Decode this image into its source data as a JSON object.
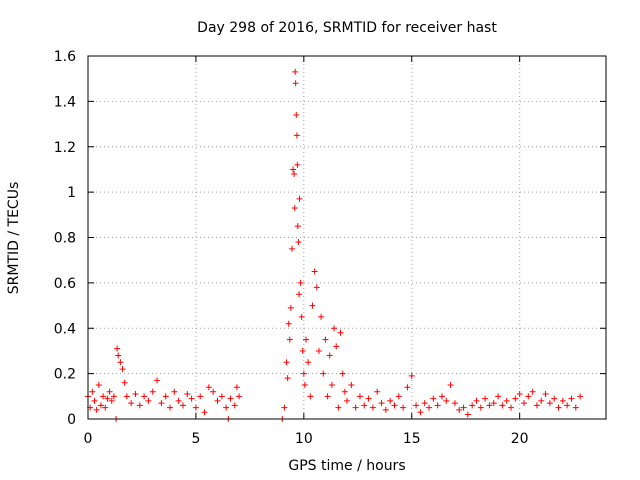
{
  "chart_data": {
    "type": "scatter",
    "title": "Day 298 of 2016, SRMTID for receiver hast",
    "xlabel": "GPS time / hours",
    "ylabel": "SRMTID / TECUs",
    "xlim": [
      0,
      24
    ],
    "ylim": [
      0,
      1.6
    ],
    "x_ticks": [
      0,
      5,
      10,
      15,
      20
    ],
    "x_tick_labels": [
      "0",
      "5",
      "10",
      "15",
      "20"
    ],
    "y_ticks": [
      0,
      0.2,
      0.4,
      0.6,
      0.8,
      1,
      1.2,
      1.4,
      1.6
    ],
    "y_tick_labels": [
      "0",
      "0.2",
      "0.4",
      "0.6",
      "0.8",
      "1",
      "1.2",
      "1.4",
      "1.6"
    ],
    "grid": true,
    "marker": "+",
    "series": [
      {
        "name": "SRMTID",
        "color": "#ff0000",
        "points": [
          [
            0.0,
            0.1
          ],
          [
            0.1,
            0.05
          ],
          [
            0.2,
            0.12
          ],
          [
            0.3,
            0.08
          ],
          [
            0.4,
            0.04
          ],
          [
            0.5,
            0.15
          ],
          [
            0.6,
            0.06
          ],
          [
            0.7,
            0.1
          ],
          [
            0.8,
            0.05
          ],
          [
            0.9,
            0.09
          ],
          [
            1.0,
            0.12
          ],
          [
            1.1,
            0.08
          ],
          [
            1.2,
            0.1
          ],
          [
            1.3,
            0.0
          ],
          [
            1.35,
            0.31
          ],
          [
            1.4,
            0.28
          ],
          [
            1.5,
            0.25
          ],
          [
            1.6,
            0.22
          ],
          [
            1.7,
            0.16
          ],
          [
            1.8,
            0.1
          ],
          [
            2.0,
            0.07
          ],
          [
            2.2,
            0.11
          ],
          [
            2.4,
            0.06
          ],
          [
            2.6,
            0.1
          ],
          [
            2.8,
            0.08
          ],
          [
            3.0,
            0.12
          ],
          [
            3.2,
            0.17
          ],
          [
            3.4,
            0.07
          ],
          [
            3.6,
            0.1
          ],
          [
            3.8,
            0.05
          ],
          [
            4.0,
            0.12
          ],
          [
            4.2,
            0.08
          ],
          [
            4.4,
            0.06
          ],
          [
            4.6,
            0.11
          ],
          [
            4.8,
            0.09
          ],
          [
            5.0,
            0.05
          ],
          [
            5.2,
            0.1
          ],
          [
            5.4,
            0.03
          ],
          [
            5.6,
            0.14
          ],
          [
            5.8,
            0.12
          ],
          [
            6.0,
            0.08
          ],
          [
            6.2,
            0.1
          ],
          [
            6.4,
            0.05
          ],
          [
            6.5,
            0.0
          ],
          [
            6.6,
            0.09
          ],
          [
            6.8,
            0.06
          ],
          [
            6.9,
            0.14
          ],
          [
            7.0,
            0.1
          ],
          [
            9.0,
            0.0
          ],
          [
            9.1,
            0.05
          ],
          [
            9.2,
            0.25
          ],
          [
            9.25,
            0.18
          ],
          [
            9.3,
            0.42
          ],
          [
            9.35,
            0.35
          ],
          [
            9.4,
            0.49
          ],
          [
            9.45,
            0.75
          ],
          [
            9.5,
            1.1
          ],
          [
            9.55,
            1.08
          ],
          [
            9.58,
            0.93
          ],
          [
            9.6,
            1.53
          ],
          [
            9.62,
            1.48
          ],
          [
            9.65,
            1.34
          ],
          [
            9.68,
            1.25
          ],
          [
            9.7,
            1.12
          ],
          [
            9.72,
            0.85
          ],
          [
            9.75,
            0.78
          ],
          [
            9.78,
            0.55
          ],
          [
            9.8,
            0.97
          ],
          [
            9.85,
            0.6
          ],
          [
            9.9,
            0.45
          ],
          [
            9.95,
            0.3
          ],
          [
            10.0,
            0.2
          ],
          [
            10.05,
            0.15
          ],
          [
            10.1,
            0.35
          ],
          [
            10.2,
            0.25
          ],
          [
            10.3,
            0.1
          ],
          [
            10.4,
            0.5
          ],
          [
            10.5,
            0.65
          ],
          [
            10.6,
            0.58
          ],
          [
            10.7,
            0.3
          ],
          [
            10.8,
            0.45
          ],
          [
            10.9,
            0.2
          ],
          [
            11.0,
            0.35
          ],
          [
            11.1,
            0.1
          ],
          [
            11.2,
            0.28
          ],
          [
            11.3,
            0.15
          ],
          [
            11.4,
            0.4
          ],
          [
            11.5,
            0.32
          ],
          [
            11.6,
            0.05
          ],
          [
            11.7,
            0.38
          ],
          [
            11.8,
            0.2
          ],
          [
            11.9,
            0.12
          ],
          [
            12.0,
            0.08
          ],
          [
            12.2,
            0.15
          ],
          [
            12.4,
            0.05
          ],
          [
            12.6,
            0.1
          ],
          [
            12.8,
            0.06
          ],
          [
            13.0,
            0.09
          ],
          [
            13.2,
            0.05
          ],
          [
            13.4,
            0.12
          ],
          [
            13.6,
            0.07
          ],
          [
            13.8,
            0.04
          ],
          [
            14.0,
            0.08
          ],
          [
            14.2,
            0.06
          ],
          [
            14.4,
            0.1
          ],
          [
            14.6,
            0.05
          ],
          [
            14.8,
            0.14
          ],
          [
            15.0,
            0.19
          ],
          [
            15.2,
            0.06
          ],
          [
            15.4,
            0.03
          ],
          [
            15.6,
            0.07
          ],
          [
            15.8,
            0.05
          ],
          [
            16.0,
            0.09
          ],
          [
            16.2,
            0.06
          ],
          [
            16.4,
            0.1
          ],
          [
            16.6,
            0.08
          ],
          [
            16.8,
            0.15
          ],
          [
            17.0,
            0.07
          ],
          [
            17.2,
            0.04
          ],
          [
            17.4,
            0.05
          ],
          [
            17.6,
            0.02
          ],
          [
            17.8,
            0.06
          ],
          [
            18.0,
            0.08
          ],
          [
            18.2,
            0.05
          ],
          [
            18.4,
            0.09
          ],
          [
            18.6,
            0.06
          ],
          [
            18.8,
            0.07
          ],
          [
            19.0,
            0.1
          ],
          [
            19.2,
            0.06
          ],
          [
            19.4,
            0.08
          ],
          [
            19.6,
            0.05
          ],
          [
            19.8,
            0.09
          ],
          [
            20.0,
            0.11
          ],
          [
            20.2,
            0.07
          ],
          [
            20.4,
            0.1
          ],
          [
            20.6,
            0.12
          ],
          [
            20.8,
            0.06
          ],
          [
            21.0,
            0.08
          ],
          [
            21.2,
            0.11
          ],
          [
            21.4,
            0.07
          ],
          [
            21.6,
            0.09
          ],
          [
            21.8,
            0.05
          ],
          [
            22.0,
            0.08
          ],
          [
            22.2,
            0.06
          ],
          [
            22.4,
            0.09
          ],
          [
            22.6,
            0.05
          ],
          [
            22.8,
            0.1
          ]
        ]
      }
    ]
  }
}
